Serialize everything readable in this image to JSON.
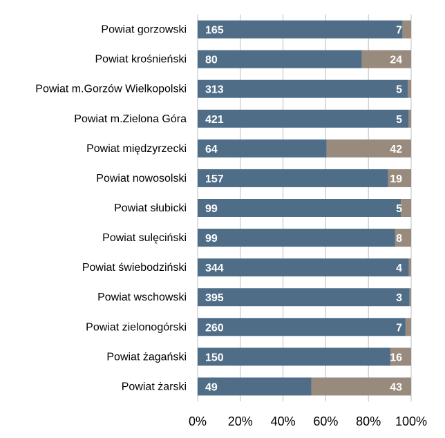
{
  "chart_data": {
    "type": "bar",
    "orientation": "horizontal",
    "stacked": "percent",
    "categories": [
      "Powiat gorzowski",
      "Powiat krośnieński",
      "Powiat m.Gorzów Wielkopolski",
      "Powiat m.Zielona Góra",
      "Powiat międzyrzecki",
      "Powiat nowosolski",
      "Powiat słubicki",
      "Powiat sulęciński",
      "Powiat świebodziński",
      "Powiat wschowski",
      "Powiat zielonogórski",
      "Powiat żagański",
      "Powiat żarski"
    ],
    "series": [
      {
        "values": [
          165,
          80,
          313,
          421,
          64,
          157,
          99,
          99,
          344,
          395,
          260,
          150,
          49
        ],
        "color": "#4f6d87"
      },
      {
        "values": [
          7,
          24,
          5,
          5,
          42,
          19,
          5,
          8,
          4,
          3,
          7,
          16,
          43
        ],
        "color": "#998a7e"
      }
    ],
    "x_ticks": [
      "0%",
      "20%",
      "40%",
      "60%",
      "80%",
      "100%"
    ],
    "xlim": [
      0,
      100
    ],
    "grid": true,
    "legend": "none",
    "title": "",
    "xlabel": "",
    "ylabel": ""
  }
}
